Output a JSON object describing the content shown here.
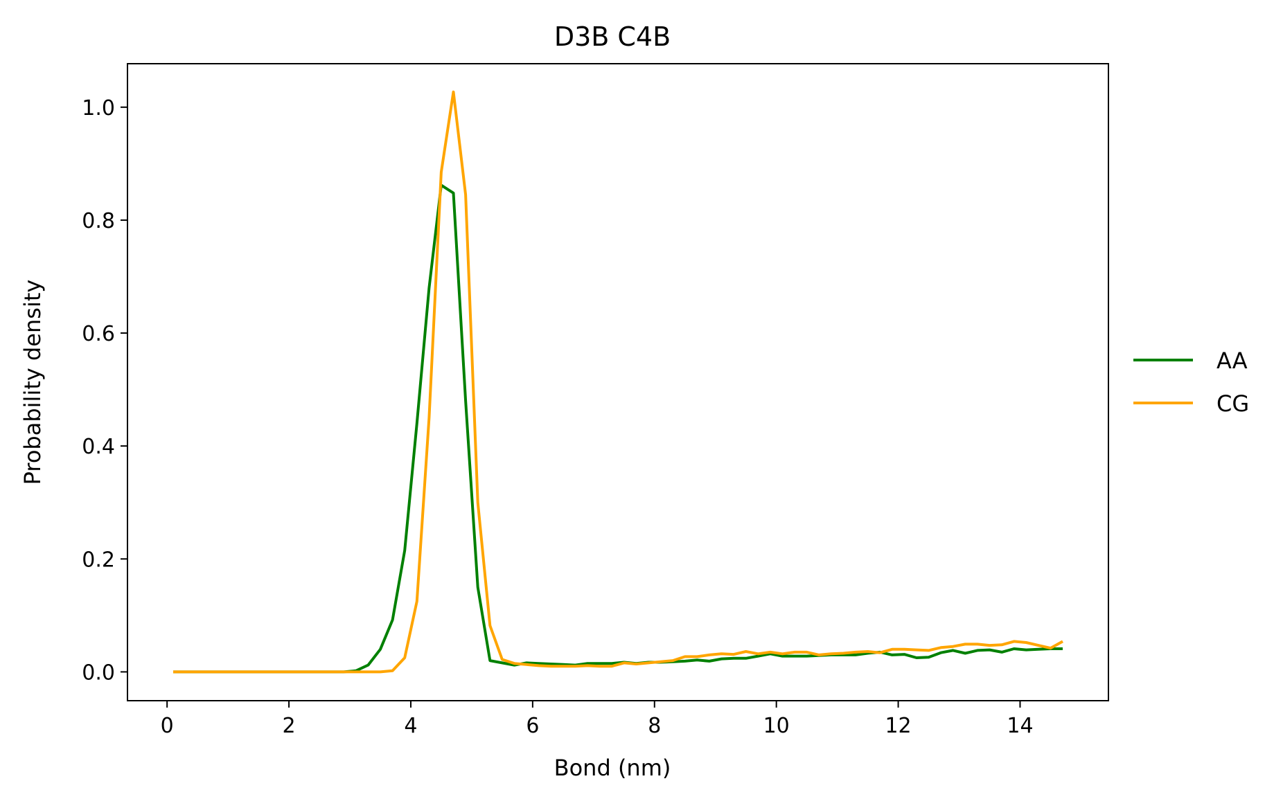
{
  "chart_data": {
    "type": "line",
    "title": "D3B C4B",
    "xlabel": "Bond (nm)",
    "ylabel": "Probability density",
    "xlim": [
      -0.65,
      15.45
    ],
    "ylim": [
      -0.051,
      1.077
    ],
    "xticks": [
      0,
      2,
      4,
      6,
      8,
      10,
      12,
      14
    ],
    "yticks": [
      0.0,
      0.2,
      0.4,
      0.6,
      0.8,
      1.0
    ],
    "ytick_labels": [
      "0.0",
      "0.2",
      "0.4",
      "0.6",
      "0.8",
      "1.0"
    ],
    "grid": false,
    "legend_position": "right-outside",
    "x": [
      0.1,
      0.3,
      0.5,
      0.7,
      0.9,
      1.1,
      1.3,
      1.5,
      1.7,
      1.9,
      2.1,
      2.3,
      2.5,
      2.7,
      2.9,
      3.1,
      3.3,
      3.5,
      3.7,
      3.9,
      4.1,
      4.3,
      4.5,
      4.7,
      4.9,
      5.1,
      5.3,
      5.5,
      5.7,
      5.9,
      6.1,
      6.3,
      6.5,
      6.7,
      6.9,
      7.1,
      7.3,
      7.5,
      7.7,
      7.9,
      8.1,
      8.3,
      8.5,
      8.7,
      8.9,
      9.1,
      9.3,
      9.5,
      9.7,
      9.9,
      10.1,
      10.3,
      10.5,
      10.7,
      10.9,
      11.1,
      11.3,
      11.5,
      11.7,
      11.9,
      12.1,
      12.3,
      12.5,
      12.7,
      12.9,
      13.1,
      13.3,
      13.5,
      13.7,
      13.9,
      14.1,
      14.3,
      14.5,
      14.7
    ],
    "series": [
      {
        "name": "AA",
        "color": "#008000",
        "values": [
          0,
          0,
          0,
          0,
          0,
          0,
          0,
          0,
          0,
          0,
          0,
          0,
          0,
          0,
          0,
          0.002,
          0.012,
          0.04,
          0.092,
          0.215,
          0.44,
          0.68,
          0.862,
          0.848,
          0.48,
          0.15,
          0.02,
          0.016,
          0.012,
          0.016,
          0.015,
          0.014,
          0.013,
          0.012,
          0.015,
          0.015,
          0.015,
          0.017,
          0.015,
          0.017,
          0.017,
          0.018,
          0.019,
          0.021,
          0.019,
          0.023,
          0.024,
          0.024,
          0.028,
          0.032,
          0.028,
          0.028,
          0.028,
          0.029,
          0.03,
          0.03,
          0.03,
          0.033,
          0.035,
          0.03,
          0.031,
          0.025,
          0.026,
          0.034,
          0.038,
          0.033,
          0.038,
          0.039,
          0.035,
          0.041,
          0.039,
          0.04,
          0.041,
          0.041
        ]
      },
      {
        "name": "CG",
        "color": "#FFA500",
        "values": [
          0,
          0,
          0,
          0,
          0,
          0,
          0,
          0,
          0,
          0,
          0,
          0,
          0,
          0,
          0,
          0,
          0,
          0,
          0.002,
          0.025,
          0.125,
          0.45,
          0.885,
          1.027,
          0.845,
          0.3,
          0.082,
          0.022,
          0.015,
          0.013,
          0.011,
          0.01,
          0.01,
          0.01,
          0.011,
          0.01,
          0.01,
          0.016,
          0.014,
          0.016,
          0.018,
          0.02,
          0.027,
          0.027,
          0.03,
          0.032,
          0.031,
          0.036,
          0.032,
          0.035,
          0.032,
          0.035,
          0.035,
          0.03,
          0.032,
          0.033,
          0.035,
          0.036,
          0.034,
          0.04,
          0.04,
          0.039,
          0.038,
          0.043,
          0.045,
          0.049,
          0.049,
          0.047,
          0.048,
          0.054,
          0.052,
          0.047,
          0.042,
          0.054
        ]
      }
    ]
  }
}
